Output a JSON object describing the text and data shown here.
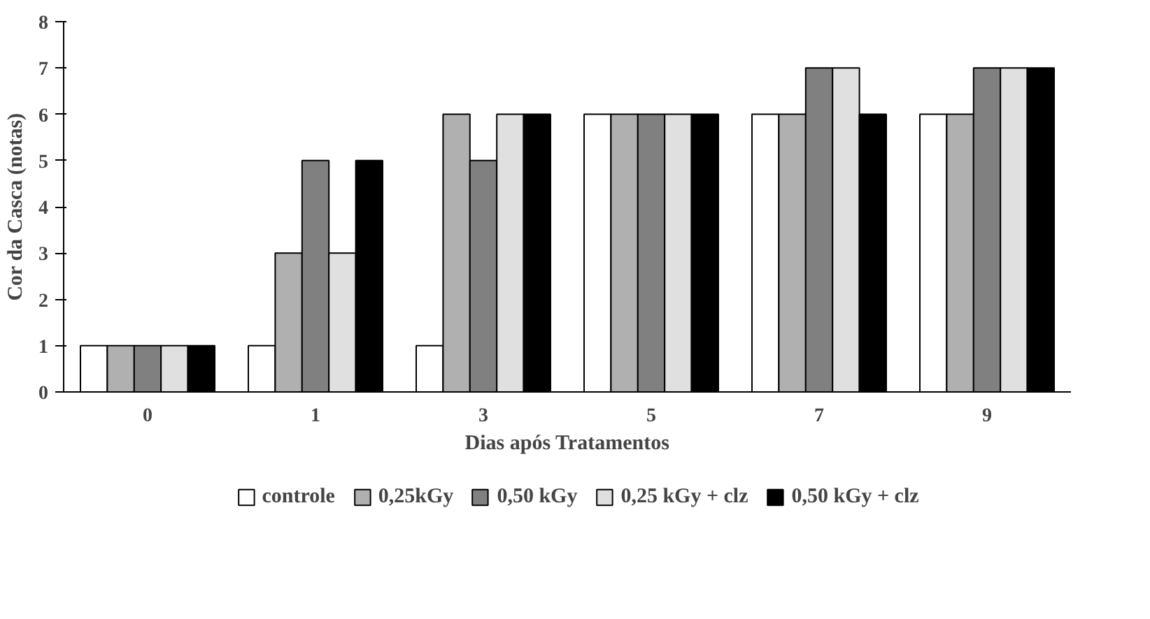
{
  "chart_data": {
    "type": "bar",
    "xlabel": "Dias após Tratamentos",
    "ylabel": "Cor da Casca (notas)",
    "categories": [
      "0",
      "1",
      "3",
      "5",
      "7",
      "9"
    ],
    "series": [
      {
        "name": "controle",
        "color": "#ffffff",
        "values": [
          1,
          1,
          1,
          6,
          6,
          6
        ]
      },
      {
        "name": "0,25kGy",
        "color": "#b0b0b0",
        "values": [
          1,
          3,
          6,
          6,
          6,
          6
        ]
      },
      {
        "name": "0,50 kGy",
        "color": "#808080",
        "values": [
          1,
          5,
          5,
          6,
          7,
          7
        ]
      },
      {
        "name": "0,25 kGy + clz",
        "color": "#e0e0e0",
        "values": [
          1,
          3,
          6,
          6,
          7,
          7
        ]
      },
      {
        "name": "0,50 kGy + clz",
        "color": "#000000",
        "values": [
          1,
          5,
          6,
          6,
          6,
          7
        ]
      }
    ],
    "ylim": [
      0,
      8
    ],
    "yticks": [
      0,
      1,
      2,
      3,
      4,
      5,
      6,
      7,
      8
    ],
    "grid": false,
    "legend": "bottom"
  }
}
